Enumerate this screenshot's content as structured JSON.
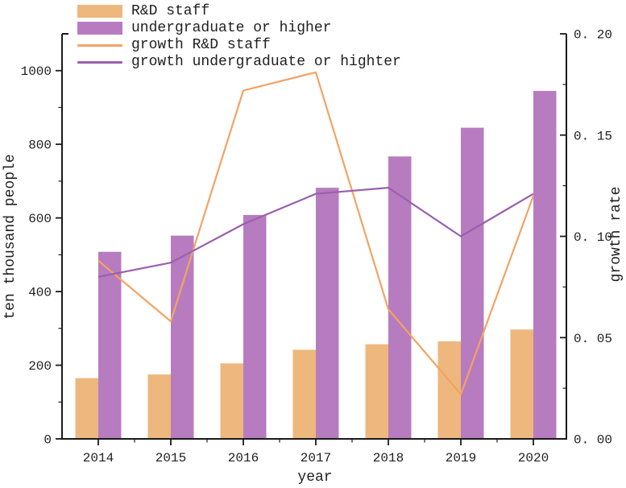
{
  "figure": {
    "legend": {
      "items": [
        {
          "label": "R&D staff",
          "handle_type": "bar-swatch",
          "color": "#EDB77D"
        },
        {
          "label": "undergraduate or higher",
          "handle_type": "bar-swatch",
          "color": "#B77CBF"
        },
        {
          "label": "growth R&D staff",
          "handle_type": "line",
          "color": "#F4A263"
        },
        {
          "label": "growth undergraduate or highter",
          "handle_type": "line",
          "color": "#9A5FAE"
        }
      ]
    }
  },
  "chart_data": {
    "type": "bar",
    "subtype": "grouped bars with overlaid lines, dual y-axes",
    "categories": [
      "2014",
      "2015",
      "2016",
      "2017",
      "2018",
      "2019",
      "2020"
    ],
    "bar_series": [
      {
        "name": "R&D staff",
        "axis": "left",
        "color": "#EDB77D",
        "values": [
          165,
          175,
          205,
          242,
          257,
          265,
          297
        ]
      },
      {
        "name": "undergraduate or higher",
        "axis": "left",
        "color": "#B77CBF",
        "values": [
          508,
          552,
          608,
          682,
          767,
          845,
          945
        ]
      }
    ],
    "line_series": [
      {
        "name": "growth R&D staff",
        "axis": "right",
        "color": "#F4A263",
        "values": [
          0.088,
          0.058,
          0.172,
          0.181,
          0.064,
          0.022,
          0.12
        ]
      },
      {
        "name": "growth undergraduate or highter",
        "axis": "right",
        "color": "#9A5FAE",
        "values": [
          0.08,
          0.087,
          0.106,
          0.121,
          0.124,
          0.1,
          0.121
        ]
      }
    ],
    "left_axis": {
      "label": "ten thousand people",
      "range": [
        0,
        1100
      ],
      "tick_values": [
        0,
        200,
        400,
        600,
        800,
        1000
      ],
      "tick_labels": [
        "0",
        "200",
        "400",
        "600",
        "800",
        "1000"
      ],
      "minor_tick_values": [
        100,
        300,
        500,
        700,
        900
      ]
    },
    "right_axis": {
      "label": "growth rate",
      "range": [
        0,
        0.2
      ],
      "tick_values": [
        0.05,
        0.1,
        0.15,
        0.2
      ],
      "tick_labels": [
        "0. 05",
        "0. 10",
        "0. 15",
        "0. 20"
      ],
      "bottom_tick_label": "0. 00",
      "minor_tick_values": [
        0.025,
        0.075,
        0.125,
        0.175
      ]
    },
    "x_axis": {
      "label": "year"
    },
    "legend_position": "upper left",
    "grid": false,
    "colors": {
      "bar_rd_staff": "#EDB77D",
      "bar_undergraduate": "#B77CBF",
      "line_growth_rd": "#F4A263",
      "line_growth_undergraduate": "#9A5FAE",
      "axis": "#1a1a1a",
      "text": "#1f1f1f",
      "background": "#ffffff"
    }
  }
}
